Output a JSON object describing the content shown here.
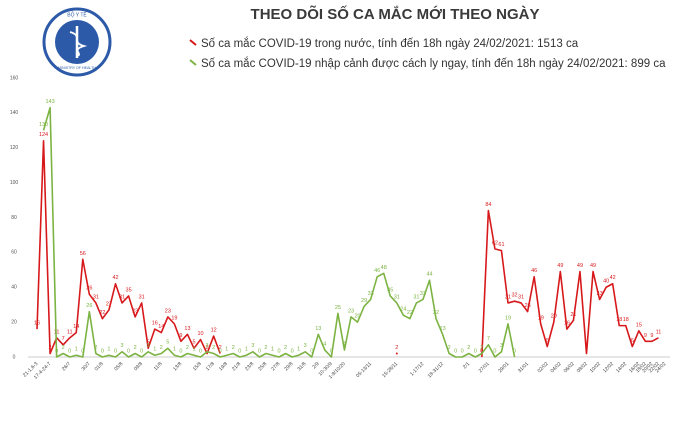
{
  "chart_data": {
    "type": "line",
    "title": "THEO DÕI SỐ CA MẮC MỚI THEO NGÀY",
    "logo": [
      "BỘ Y TẾ",
      "MINISTRY OF HEALTH"
    ],
    "categories": [
      "21-1,6-3",
      null,
      "17-4-24-7",
      null,
      null,
      "26/7",
      null,
      null,
      "30/7",
      null,
      "01/8",
      null,
      null,
      "05/8",
      null,
      null,
      "09/8",
      null,
      null,
      "11/8",
      null,
      null,
      "13/8",
      null,
      null,
      "15/8",
      null,
      "17/8",
      null,
      "19/8",
      null,
      "21/8",
      null,
      "23/8",
      null,
      "25/8",
      null,
      "27/8",
      null,
      "29/8",
      null,
      "31/8",
      null,
      "2/9",
      null,
      "10-30/9",
      null,
      "1-9/10/20",
      null,
      null,
      null,
      "05-13/11",
      null,
      null,
      null,
      "15-28/11",
      null,
      null,
      null,
      "1-17/12",
      null,
      null,
      "18-31/12",
      null,
      null,
      null,
      "2/1",
      null,
      null,
      "27/01",
      null,
      null,
      "29/01",
      null,
      null,
      "31/01",
      null,
      null,
      "02/02",
      null,
      "04/02",
      null,
      "06/02",
      null,
      "08/02",
      null,
      "10/02",
      null,
      "12/02",
      null,
      "14/02",
      null,
      "16/02",
      "18/02",
      "20/02",
      "22/02",
      "24/02"
    ],
    "series": [
      {
        "name": "Số ca mắc COVID-19 trong nước, tính đến 18h ngày 24/02/2021: 1513 ca",
        "color": "#d7191c",
        "values": [
          16,
          124,
          2,
          11,
          7,
          11,
          14,
          56,
          36,
          31,
          22,
          27,
          42,
          31,
          35,
          23,
          31,
          5,
          16,
          14,
          23,
          19,
          9,
          13,
          5,
          10,
          2,
          12,
          2,
          null,
          null,
          null,
          null,
          null,
          null,
          null,
          null,
          null,
          null,
          null,
          null,
          null,
          null,
          null,
          null,
          null,
          null,
          null,
          null,
          null,
          null,
          null,
          null,
          null,
          null,
          2,
          null,
          null,
          null,
          null,
          null,
          null,
          null,
          null,
          null,
          null,
          null,
          null,
          0,
          84,
          62,
          61,
          31,
          32,
          31,
          26,
          46,
          19,
          6,
          20,
          49,
          16,
          21,
          49,
          2,
          49,
          33,
          40,
          42,
          18,
          18,
          6,
          15,
          9,
          9,
          11,
          null
        ]
      },
      {
        "name": "Số ca mắc COVID-19 nhập cảnh được cách ly ngay, tính đến 18h ngày 24/02/2021: 899 ca",
        "color": "#7cb342",
        "values": [
          null,
          130,
          143,
          0,
          2,
          0,
          1,
          0,
          26,
          2,
          0,
          1,
          0,
          3,
          0,
          2,
          0,
          3,
          1,
          2,
          5,
          1,
          0,
          2,
          1,
          0,
          3,
          2,
          0,
          1,
          2,
          0,
          1,
          3,
          0,
          2,
          1,
          0,
          2,
          0,
          1,
          3,
          0,
          13,
          4,
          0,
          25,
          4,
          23,
          20,
          29,
          33,
          46,
          48,
          35,
          31,
          24,
          22,
          31,
          33,
          44,
          22,
          13,
          2,
          0,
          0,
          2,
          0,
          2,
          7,
          0,
          3,
          19,
          0,
          null,
          null,
          null,
          null,
          null,
          null,
          null,
          null,
          null,
          null,
          null,
          null,
          null,
          null,
          null,
          null,
          null,
          null,
          null,
          null,
          null,
          null,
          null
        ]
      }
    ],
    "ylim": [
      0,
      160
    ],
    "yticks": [
      0,
      20,
      40,
      60,
      80,
      100,
      120,
      140,
      160
    ],
    "grid": false
  }
}
